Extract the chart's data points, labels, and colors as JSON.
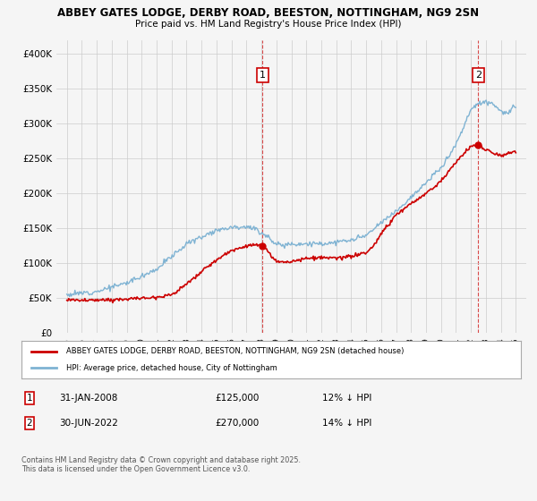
{
  "title1": "ABBEY GATES LODGE, DERBY ROAD, BEESTON, NOTTINGHAM, NG9 2SN",
  "title2": "Price paid vs. HM Land Registry's House Price Index (HPI)",
  "legend_label1": "ABBEY GATES LODGE, DERBY ROAD, BEESTON, NOTTINGHAM, NG9 2SN (detached house)",
  "legend_label2": "HPI: Average price, detached house, City of Nottingham",
  "footnote": "Contains HM Land Registry data © Crown copyright and database right 2025.\nThis data is licensed under the Open Government Licence v3.0.",
  "color_red": "#cc0000",
  "color_blue": "#7fb3d3",
  "bg_color": "#f5f5f5",
  "grid_color": "#cccccc",
  "ylim": [
    0,
    420000
  ],
  "yticks": [
    0,
    50000,
    100000,
    150000,
    200000,
    250000,
    300000,
    350000,
    400000
  ],
  "ytick_labels": [
    "£0",
    "£50K",
    "£100K",
    "£150K",
    "£200K",
    "£250K",
    "£300K",
    "£350K",
    "£400K"
  ],
  "sale1_year": 2008.08,
  "sale2_year": 2022.5,
  "ann1_label": "1",
  "ann2_label": "2",
  "ann1_date": "31-JAN-2008",
  "ann1_price": "£125,000",
  "ann1_pct": "12% ↓ HPI",
  "ann2_date": "30-JUN-2022",
  "ann2_price": "£270,000",
  "ann2_pct": "14% ↓ HPI"
}
